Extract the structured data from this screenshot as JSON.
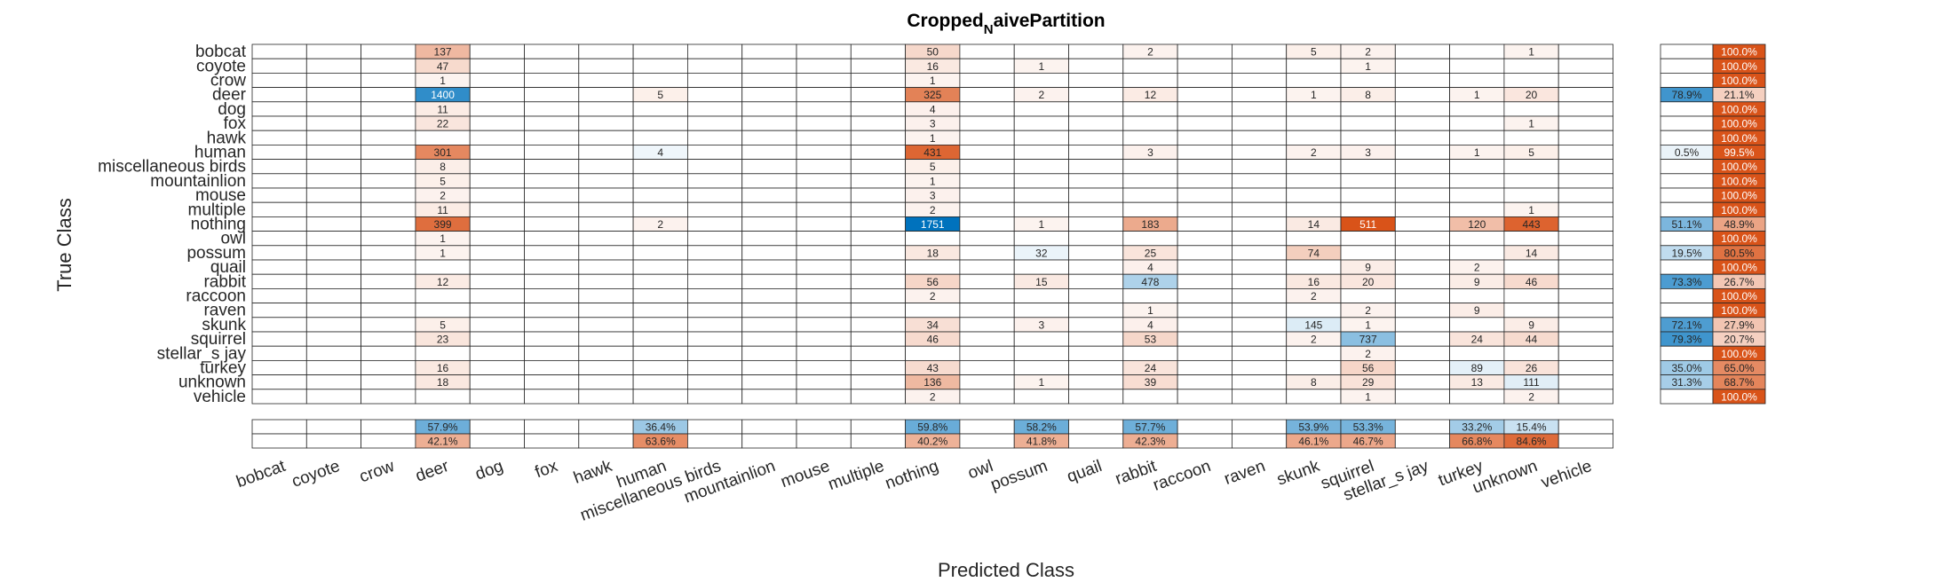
{
  "chart_data": {
    "type": "heatmap",
    "title_prefix": "Cropped",
    "title_subscript": "N",
    "title_suffix": "aivePartition",
    "xlabel": "Predicted Class",
    "ylabel": "True Class",
    "classes": [
      "bobcat",
      "coyote",
      "crow",
      "deer",
      "dog",
      "fox",
      "hawk",
      "human",
      "miscellaneous birds",
      "mountainlion",
      "mouse",
      "multiple",
      "nothing",
      "owl",
      "possum",
      "quail",
      "rabbit",
      "raccoon",
      "raven",
      "skunk",
      "squirrel",
      "stellar_s jay",
      "turkey",
      "unknown",
      "vehicle"
    ],
    "matrix": [
      [
        0,
        0,
        0,
        137,
        0,
        0,
        0,
        0,
        0,
        0,
        0,
        0,
        50,
        0,
        0,
        0,
        2,
        0,
        0,
        5,
        2,
        0,
        0,
        1,
        0
      ],
      [
        0,
        0,
        0,
        47,
        0,
        0,
        0,
        0,
        0,
        0,
        0,
        0,
        16,
        0,
        1,
        0,
        0,
        0,
        0,
        0,
        1,
        0,
        0,
        0,
        0
      ],
      [
        0,
        0,
        0,
        1,
        0,
        0,
        0,
        0,
        0,
        0,
        0,
        0,
        1,
        0,
        0,
        0,
        0,
        0,
        0,
        0,
        0,
        0,
        0,
        0,
        0
      ],
      [
        0,
        0,
        0,
        1400,
        0,
        0,
        0,
        5,
        0,
        0,
        0,
        0,
        325,
        0,
        2,
        0,
        12,
        0,
        0,
        1,
        8,
        0,
        1,
        20,
        0
      ],
      [
        0,
        0,
        0,
        11,
        0,
        0,
        0,
        0,
        0,
        0,
        0,
        0,
        4,
        0,
        0,
        0,
        0,
        0,
        0,
        0,
        0,
        0,
        0,
        0,
        0
      ],
      [
        0,
        0,
        0,
        22,
        0,
        0,
        0,
        0,
        0,
        0,
        0,
        0,
        3,
        0,
        0,
        0,
        0,
        0,
        0,
        0,
        0,
        0,
        0,
        1,
        0
      ],
      [
        0,
        0,
        0,
        0,
        0,
        0,
        0,
        0,
        0,
        0,
        0,
        0,
        1,
        0,
        0,
        0,
        0,
        0,
        0,
        0,
        0,
        0,
        0,
        0,
        0
      ],
      [
        0,
        0,
        0,
        301,
        0,
        0,
        0,
        4,
        0,
        0,
        0,
        0,
        431,
        0,
        0,
        0,
        3,
        0,
        0,
        2,
        3,
        0,
        1,
        5,
        0
      ],
      [
        0,
        0,
        0,
        8,
        0,
        0,
        0,
        0,
        0,
        0,
        0,
        0,
        5,
        0,
        0,
        0,
        0,
        0,
        0,
        0,
        0,
        0,
        0,
        0,
        0
      ],
      [
        0,
        0,
        0,
        5,
        0,
        0,
        0,
        0,
        0,
        0,
        0,
        0,
        1,
        0,
        0,
        0,
        0,
        0,
        0,
        0,
        0,
        0,
        0,
        0,
        0
      ],
      [
        0,
        0,
        0,
        2,
        0,
        0,
        0,
        0,
        0,
        0,
        0,
        0,
        3,
        0,
        0,
        0,
        0,
        0,
        0,
        0,
        0,
        0,
        0,
        0,
        0
      ],
      [
        0,
        0,
        0,
        11,
        0,
        0,
        0,
        0,
        0,
        0,
        0,
        0,
        2,
        0,
        0,
        0,
        0,
        0,
        0,
        0,
        0,
        0,
        0,
        1,
        0
      ],
      [
        0,
        0,
        0,
        399,
        0,
        0,
        0,
        2,
        0,
        0,
        0,
        0,
        1751,
        0,
        1,
        0,
        183,
        0,
        0,
        14,
        511,
        0,
        120,
        443,
        0
      ],
      [
        0,
        0,
        0,
        1,
        0,
        0,
        0,
        0,
        0,
        0,
        0,
        0,
        0,
        0,
        0,
        0,
        0,
        0,
        0,
        0,
        0,
        0,
        0,
        0,
        0
      ],
      [
        0,
        0,
        0,
        1,
        0,
        0,
        0,
        0,
        0,
        0,
        0,
        0,
        18,
        0,
        32,
        0,
        25,
        0,
        0,
        74,
        0,
        0,
        0,
        14,
        0
      ],
      [
        0,
        0,
        0,
        0,
        0,
        0,
        0,
        0,
        0,
        0,
        0,
        0,
        0,
        0,
        0,
        0,
        4,
        0,
        0,
        0,
        9,
        0,
        2,
        0,
        0
      ],
      [
        0,
        0,
        0,
        12,
        0,
        0,
        0,
        0,
        0,
        0,
        0,
        0,
        56,
        0,
        15,
        0,
        478,
        0,
        0,
        16,
        20,
        0,
        9,
        46,
        0
      ],
      [
        0,
        0,
        0,
        0,
        0,
        0,
        0,
        0,
        0,
        0,
        0,
        0,
        2,
        0,
        0,
        0,
        0,
        0,
        0,
        2,
        0,
        0,
        0,
        0,
        0
      ],
      [
        0,
        0,
        0,
        0,
        0,
        0,
        0,
        0,
        0,
        0,
        0,
        0,
        0,
        0,
        0,
        0,
        1,
        0,
        0,
        0,
        2,
        0,
        9,
        0,
        0
      ],
      [
        0,
        0,
        0,
        5,
        0,
        0,
        0,
        0,
        0,
        0,
        0,
        0,
        34,
        0,
        3,
        0,
        4,
        0,
        0,
        145,
        1,
        0,
        0,
        9,
        0
      ],
      [
        0,
        0,
        0,
        23,
        0,
        0,
        0,
        0,
        0,
        0,
        0,
        0,
        46,
        0,
        0,
        0,
        53,
        0,
        0,
        2,
        737,
        0,
        24,
        44,
        0
      ],
      [
        0,
        0,
        0,
        0,
        0,
        0,
        0,
        0,
        0,
        0,
        0,
        0,
        0,
        0,
        0,
        0,
        0,
        0,
        0,
        0,
        2,
        0,
        0,
        0,
        0
      ],
      [
        0,
        0,
        0,
        16,
        0,
        0,
        0,
        0,
        0,
        0,
        0,
        0,
        43,
        0,
        0,
        0,
        24,
        0,
        0,
        0,
        56,
        0,
        89,
        26,
        0
      ],
      [
        0,
        0,
        0,
        18,
        0,
        0,
        0,
        0,
        0,
        0,
        0,
        0,
        136,
        0,
        1,
        0,
        39,
        0,
        0,
        8,
        29,
        0,
        13,
        111,
        0
      ],
      [
        0,
        0,
        0,
        0,
        0,
        0,
        0,
        0,
        0,
        0,
        0,
        0,
        2,
        0,
        0,
        0,
        0,
        0,
        0,
        0,
        1,
        0,
        0,
        2,
        0
      ]
    ],
    "row_summary_correct": [
      "",
      "",
      "",
      "78.9%",
      "",
      "",
      "",
      "0.5%",
      "",
      "",
      "",
      "",
      "51.1%",
      "",
      "19.5%",
      "",
      "73.3%",
      "",
      "",
      "72.1%",
      "79.3%",
      "",
      "35.0%",
      "31.3%",
      ""
    ],
    "row_summary_incorrect": [
      "100.0%",
      "100.0%",
      "100.0%",
      "21.1%",
      "100.0%",
      "100.0%",
      "100.0%",
      "99.5%",
      "100.0%",
      "100.0%",
      "100.0%",
      "100.0%",
      "48.9%",
      "100.0%",
      "80.5%",
      "100.0%",
      "26.7%",
      "100.0%",
      "100.0%",
      "27.9%",
      "20.7%",
      "100.0%",
      "65.0%",
      "68.7%",
      "100.0%"
    ],
    "col_summary_correct": [
      "",
      "",
      "",
      "57.9%",
      "",
      "",
      "",
      "36.4%",
      "",
      "",
      "",
      "",
      "59.8%",
      "",
      "58.2%",
      "",
      "57.7%",
      "",
      "",
      "53.9%",
      "53.3%",
      "",
      "33.2%",
      "15.4%",
      ""
    ],
    "col_summary_incorrect": [
      "",
      "",
      "",
      "42.1%",
      "",
      "",
      "",
      "63.6%",
      "",
      "",
      "",
      "",
      "40.2%",
      "",
      "41.8%",
      "",
      "42.3%",
      "",
      "",
      "46.1%",
      "46.7%",
      "",
      "66.8%",
      "84.6%",
      ""
    ]
  }
}
